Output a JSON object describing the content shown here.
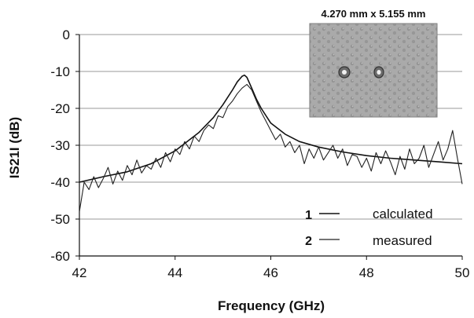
{
  "chart_data": {
    "type": "line",
    "xlabel": "Frequency (GHz)",
    "ylabel": "IS21I (dB)",
    "xlim": [
      42,
      50
    ],
    "ylim": [
      -60,
      0
    ],
    "x_ticks": [
      "42",
      "44",
      "46",
      "48",
      "50"
    ],
    "y_ticks": [
      "0",
      "-10",
      "-20",
      "-30",
      "-40",
      "-50",
      "-60"
    ],
    "grid": "horizontal",
    "legend_position": "bottom-right",
    "inset": {
      "caption": "4.270 mm x 5.155 mm",
      "content": "photograph of fabricated filter chip"
    },
    "series": [
      {
        "name": "calculated",
        "legend_number": "1",
        "color": "#111111",
        "x": [
          42.0,
          42.5,
          43.0,
          43.5,
          44.0,
          44.5,
          44.8,
          45.0,
          45.2,
          45.3,
          45.4,
          45.45,
          45.5,
          45.6,
          45.7,
          45.8,
          46.0,
          46.3,
          46.6,
          47.0,
          47.5,
          48.0,
          48.5,
          49.0,
          49.5,
          50.0
        ],
        "y": [
          -40.0,
          -38.5,
          -37.2,
          -35.0,
          -31.5,
          -26.5,
          -22.5,
          -19.0,
          -15.0,
          -12.8,
          -11.3,
          -11.0,
          -11.6,
          -14.5,
          -17.5,
          -20.0,
          -24.0,
          -27.0,
          -29.0,
          -30.5,
          -31.8,
          -32.8,
          -33.5,
          -34.0,
          -34.5,
          -35.0
        ]
      },
      {
        "name": "measured",
        "legend_number": "2",
        "color": "#222222",
        "x": [
          42.0,
          42.1,
          42.2,
          42.3,
          42.4,
          42.5,
          42.6,
          42.7,
          42.8,
          42.9,
          43.0,
          43.1,
          43.2,
          43.3,
          43.4,
          43.5,
          43.6,
          43.7,
          43.8,
          43.9,
          44.0,
          44.1,
          44.2,
          44.3,
          44.4,
          44.5,
          44.6,
          44.7,
          44.8,
          44.9,
          45.0,
          45.1,
          45.2,
          45.3,
          45.4,
          45.5,
          45.6,
          45.7,
          45.8,
          45.9,
          46.0,
          46.1,
          46.2,
          46.3,
          46.4,
          46.5,
          46.6,
          46.7,
          46.8,
          46.9,
          47.0,
          47.1,
          47.2,
          47.3,
          47.4,
          47.5,
          47.6,
          47.7,
          47.8,
          47.9,
          48.0,
          48.1,
          48.2,
          48.3,
          48.4,
          48.5,
          48.6,
          48.7,
          48.8,
          48.9,
          49.0,
          49.1,
          49.2,
          49.3,
          49.4,
          49.5,
          49.6,
          49.7,
          49.8,
          49.9,
          50.0
        ],
        "y": [
          -48.0,
          -40.0,
          -42.0,
          -38.5,
          -41.5,
          -39.0,
          -36.0,
          -40.5,
          -37.0,
          -39.5,
          -35.5,
          -38.0,
          -34.0,
          -37.5,
          -35.5,
          -36.5,
          -33.5,
          -36.0,
          -32.0,
          -34.5,
          -31.0,
          -32.5,
          -29.0,
          -31.0,
          -27.5,
          -29.0,
          -26.0,
          -24.5,
          -25.5,
          -22.0,
          -22.5,
          -19.5,
          -18.0,
          -16.0,
          -14.5,
          -13.5,
          -15.0,
          -18.0,
          -21.0,
          -23.5,
          -26.0,
          -28.5,
          -27.0,
          -30.5,
          -29.0,
          -32.0,
          -30.0,
          -35.0,
          -31.0,
          -33.5,
          -30.5,
          -34.0,
          -32.0,
          -30.0,
          -33.5,
          -31.0,
          -35.5,
          -32.5,
          -33.0,
          -36.0,
          -33.5,
          -37.0,
          -32.0,
          -35.0,
          -31.5,
          -34.5,
          -38.0,
          -33.0,
          -36.5,
          -31.0,
          -35.0,
          -33.5,
          -30.0,
          -36.0,
          -32.5,
          -29.0,
          -34.0,
          -31.0,
          -26.0,
          -33.5,
          -40.5
        ]
      }
    ]
  }
}
